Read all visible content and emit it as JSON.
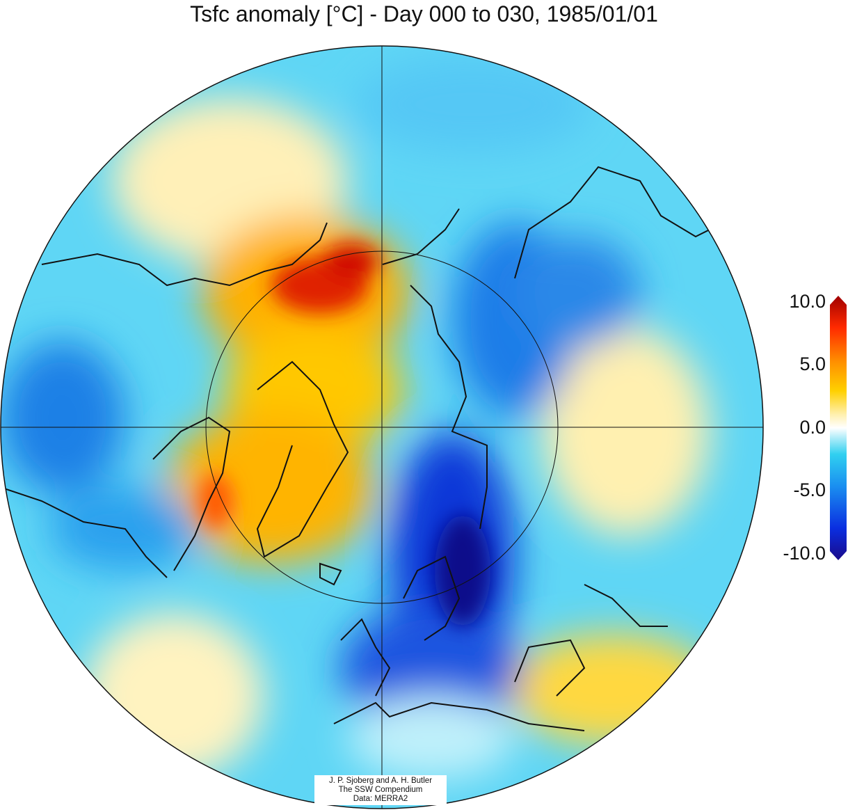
{
  "title": "Tsfc anomaly [°C] - Day 000 to 030, 1985/01/01",
  "colorbar": {
    "labels": [
      "10.0",
      "5.0",
      "0.0",
      "-5.0",
      "-10.0"
    ],
    "range": [
      -10,
      10
    ],
    "colors": [
      "#1a0a8a",
      "#0a2ee0",
      "#1a8ff0",
      "#30d0f0",
      "#bff0fa",
      "#ffffff",
      "#fff0b0",
      "#ffd000",
      "#ff9000",
      "#ff2a00",
      "#a00000"
    ]
  },
  "credit": {
    "line1": "J. P. Sjoberg and A. H. Butler",
    "line2": "The SSW Compendium",
    "line3": "Data: MERRA2"
  }
}
